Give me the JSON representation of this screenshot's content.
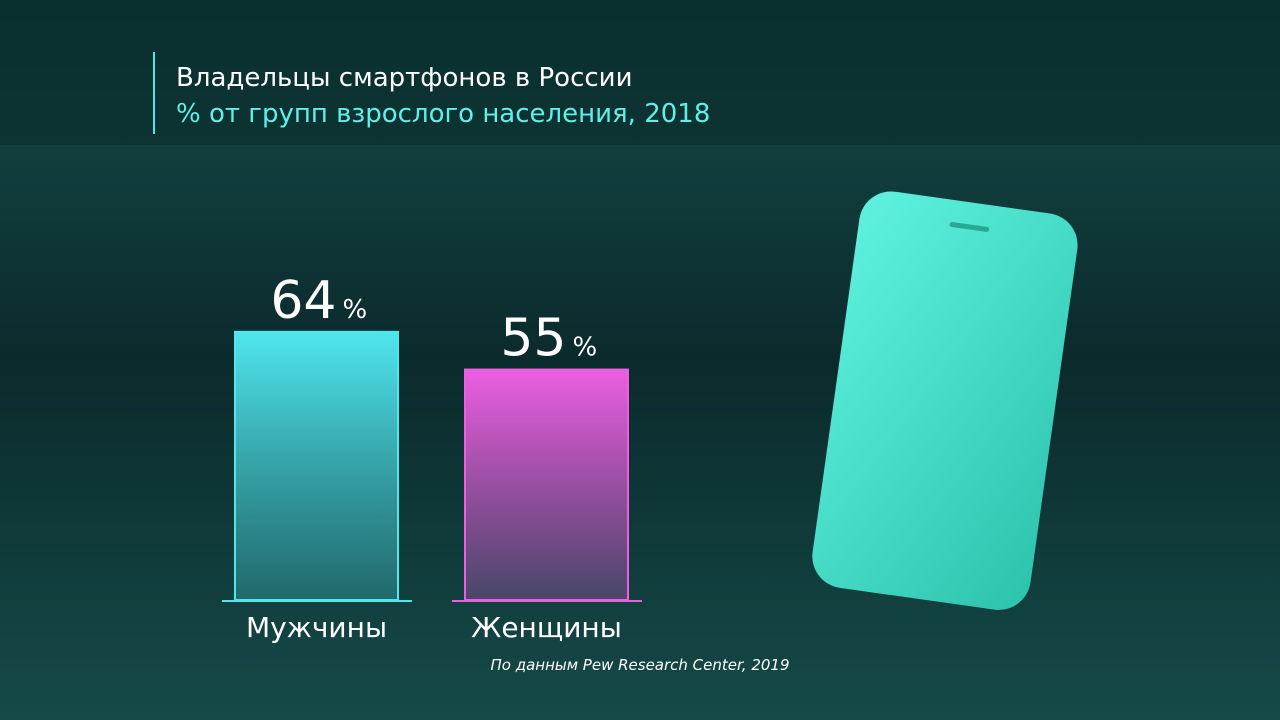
{
  "chart_data": {
    "type": "bar",
    "title": "Владельцы смартфонов в России",
    "subtitle": "% от групп взрослого населения, 2018",
    "categories": [
      "Мужчины",
      "Женщины"
    ],
    "values": [
      64,
      55
    ],
    "unit": "%",
    "colors": [
      "#4fe6ee",
      "#ec5fe2"
    ],
    "source": "По данным Pew Research Center, 2019"
  }
}
